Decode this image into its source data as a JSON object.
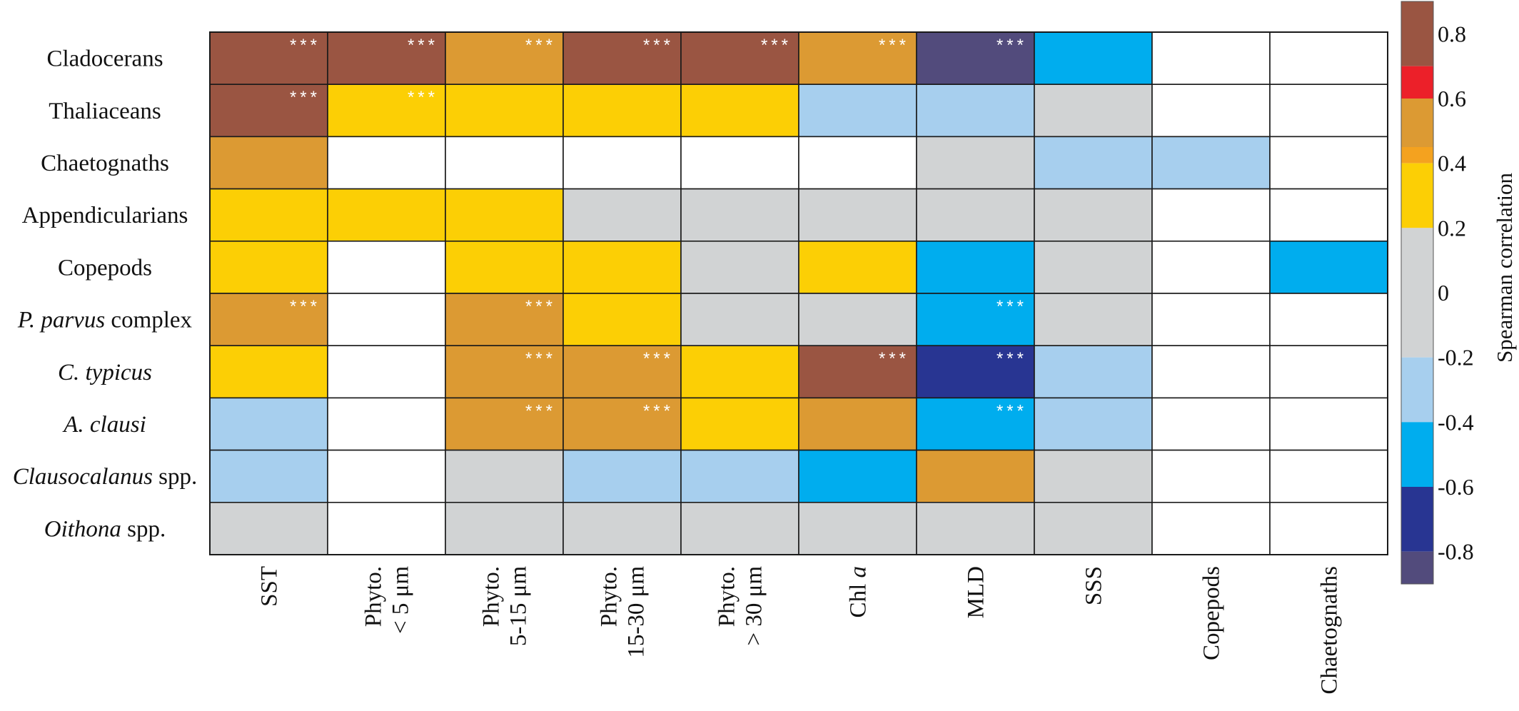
{
  "chart_data": {
    "type": "heatmap",
    "rows": [
      {
        "text": "Cladocerans"
      },
      {
        "text": "Thaliaceans"
      },
      {
        "text": "Chaetognaths"
      },
      {
        "text": "Appendicularians"
      },
      {
        "text": "Copepods"
      },
      {
        "italic": "P. parvus",
        "text": " complex"
      },
      {
        "italic": "C. typicus",
        "text": ""
      },
      {
        "italic": "A. clausi",
        "text": ""
      },
      {
        "italic": "Clausocalanus",
        "text": " spp."
      },
      {
        "italic": "Oithona",
        "text": " spp."
      }
    ],
    "columns": [
      [
        "SST"
      ],
      [
        "Phyto.",
        "< 5 μm"
      ],
      [
        "Phyto.",
        "5-15 μm"
      ],
      [
        "Phyto.",
        "15-30 μm"
      ],
      [
        "Phyto.",
        "> 30 μm"
      ],
      [
        "Chl a"
      ],
      [
        "MLD"
      ],
      [
        "SSS"
      ],
      [
        "Copepods"
      ],
      [
        "Chaetognaths"
      ]
    ],
    "values": [
      [
        0.8,
        0.7,
        0.5,
        0.8,
        0.7,
        0.5,
        -0.9,
        -0.5,
        null,
        null
      ],
      [
        0.7,
        0.3,
        0.3,
        0.3,
        0.3,
        -0.3,
        -0.3,
        0.0,
        null,
        null
      ],
      [
        0.5,
        null,
        null,
        null,
        null,
        null,
        0.0,
        -0.3,
        -0.3,
        null
      ],
      [
        0.3,
        0.3,
        0.3,
        0.0,
        0.0,
        0.0,
        0.0,
        0.0,
        null,
        null
      ],
      [
        0.3,
        null,
        0.3,
        0.3,
        0.0,
        0.3,
        -0.5,
        0.0,
        null,
        -0.5
      ],
      [
        0.5,
        null,
        0.5,
        0.3,
        0.0,
        0.0,
        -0.5,
        0.0,
        null,
        null
      ],
      [
        0.3,
        null,
        0.5,
        0.5,
        0.3,
        0.7,
        -0.7,
        -0.3,
        null,
        null
      ],
      [
        -0.3,
        null,
        0.5,
        0.5,
        0.3,
        0.5,
        -0.5,
        -0.3,
        null,
        null
      ],
      [
        -0.3,
        null,
        0.0,
        -0.3,
        -0.3,
        -0.5,
        0.5,
        0.0,
        null,
        null
      ],
      [
        0.0,
        null,
        0.0,
        0.0,
        0.0,
        0.0,
        0.0,
        0.0,
        null,
        null
      ]
    ],
    "significant": [
      [
        true,
        true,
        true,
        true,
        true,
        true,
        true,
        false,
        false,
        false
      ],
      [
        true,
        true,
        false,
        false,
        false,
        false,
        false,
        false,
        false,
        false
      ],
      [
        false,
        false,
        false,
        false,
        false,
        false,
        false,
        false,
        false,
        false
      ],
      [
        false,
        false,
        false,
        false,
        false,
        false,
        false,
        false,
        false,
        false
      ],
      [
        false,
        false,
        false,
        false,
        false,
        false,
        false,
        false,
        false,
        false
      ],
      [
        true,
        false,
        true,
        false,
        false,
        false,
        true,
        false,
        false,
        false
      ],
      [
        false,
        false,
        true,
        true,
        false,
        true,
        true,
        false,
        false,
        false
      ],
      [
        false,
        false,
        true,
        true,
        false,
        false,
        true,
        false,
        false,
        false
      ],
      [
        false,
        false,
        false,
        false,
        false,
        false,
        false,
        false,
        false,
        false
      ],
      [
        false,
        false,
        false,
        false,
        false,
        false,
        false,
        false,
        false,
        false
      ]
    ],
    "significance_marker": "***",
    "colorbar": {
      "title": "Spearman correlation",
      "ticks": [
        "0.8",
        "0.6",
        "0.4",
        "0.2",
        "0",
        "-0.2",
        "-0.4",
        "-0.6",
        "-0.8"
      ],
      "range": [
        -0.9,
        0.9
      ]
    },
    "palette": [
      {
        "min": 0.7,
        "max": 0.9,
        "color": "#9a5542"
      },
      {
        "min": 0.6,
        "max": 0.7,
        "color": "#ec2029"
      },
      {
        "min": 0.45,
        "max": 0.6,
        "color": "#dc9a33"
      },
      {
        "min": 0.4,
        "max": 0.45,
        "color": "#f4a21f"
      },
      {
        "min": 0.2,
        "max": 0.4,
        "color": "#fccf05"
      },
      {
        "min": -0.2,
        "max": 0.2,
        "color": "#d1d3d4"
      },
      {
        "min": -0.4,
        "max": -0.2,
        "color": "#a7cfee"
      },
      {
        "min": -0.6,
        "max": -0.4,
        "color": "#00adee"
      },
      {
        "min": -0.8,
        "max": -0.6,
        "color": "#283592"
      },
      {
        "min": -0.9,
        "max": -0.8,
        "color": "#524b7c"
      }
    ],
    "empty_color": "#ffffff",
    "grid": true
  }
}
